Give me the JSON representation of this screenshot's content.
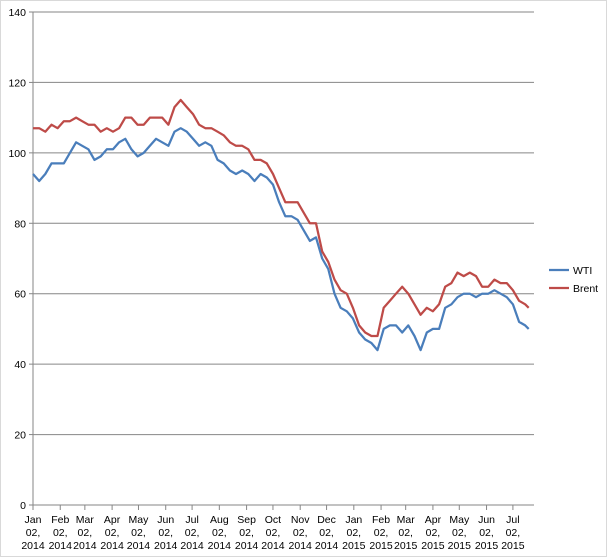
{
  "chart_data": {
    "type": "line",
    "x": [
      "2014-01-02",
      "2014-01-09",
      "2014-01-16",
      "2014-01-23",
      "2014-01-30",
      "2014-02-06",
      "2014-02-13",
      "2014-02-20",
      "2014-02-27",
      "2014-03-06",
      "2014-03-13",
      "2014-03-20",
      "2014-03-27",
      "2014-04-03",
      "2014-04-10",
      "2014-04-17",
      "2014-04-24",
      "2014-05-01",
      "2014-05-08",
      "2014-05-15",
      "2014-05-22",
      "2014-05-29",
      "2014-06-05",
      "2014-06-12",
      "2014-06-19",
      "2014-06-26",
      "2014-07-03",
      "2014-07-10",
      "2014-07-17",
      "2014-07-24",
      "2014-07-31",
      "2014-08-07",
      "2014-08-14",
      "2014-08-21",
      "2014-08-28",
      "2014-09-04",
      "2014-09-11",
      "2014-09-18",
      "2014-09-25",
      "2014-10-02",
      "2014-10-09",
      "2014-10-16",
      "2014-10-23",
      "2014-10-30",
      "2014-11-06",
      "2014-11-13",
      "2014-11-20",
      "2014-11-27",
      "2014-12-04",
      "2014-12-11",
      "2014-12-18",
      "2014-12-25",
      "2015-01-01",
      "2015-01-08",
      "2015-01-15",
      "2015-01-22",
      "2015-01-29",
      "2015-02-05",
      "2015-02-12",
      "2015-02-19",
      "2015-02-26",
      "2015-03-05",
      "2015-03-12",
      "2015-03-19",
      "2015-03-26",
      "2015-04-02",
      "2015-04-09",
      "2015-04-16",
      "2015-04-23",
      "2015-04-30",
      "2015-05-07",
      "2015-05-14",
      "2015-05-21",
      "2015-05-28",
      "2015-06-04",
      "2015-06-11",
      "2015-06-18",
      "2015-06-25",
      "2015-07-02",
      "2015-07-09",
      "2015-07-16",
      "2015-07-20"
    ],
    "series": [
      {
        "name": "WTI",
        "color": "#4a7ebb",
        "values": [
          94,
          92,
          94,
          97,
          97,
          97,
          100,
          103,
          102,
          101,
          98,
          99,
          101,
          101,
          103,
          104,
          101,
          99,
          100,
          102,
          104,
          103,
          102,
          106,
          107,
          106,
          104,
          102,
          103,
          102,
          98,
          97,
          95,
          94,
          95,
          94,
          92,
          94,
          93,
          91,
          86,
          82,
          82,
          81,
          78,
          75,
          76,
          70,
          67,
          60,
          56,
          55,
          53,
          49,
          47,
          46,
          44,
          50,
          51,
          51,
          49,
          51,
          48,
          44,
          49,
          50,
          50,
          56,
          57,
          59,
          60,
          60,
          59,
          60,
          60,
          61,
          60,
          59,
          57,
          52,
          51,
          50
        ]
      },
      {
        "name": "Brent",
        "color": "#be4b48",
        "values": [
          107,
          107,
          106,
          108,
          107,
          109,
          109,
          110,
          109,
          108,
          108,
          106,
          107,
          106,
          107,
          110,
          110,
          108,
          108,
          110,
          110,
          110,
          108,
          113,
          115,
          113,
          111,
          108,
          107,
          107,
          106,
          105,
          103,
          102,
          102,
          101,
          98,
          98,
          97,
          94,
          90,
          86,
          86,
          86,
          83,
          80,
          80,
          72,
          69,
          64,
          61,
          60,
          56,
          51,
          49,
          48,
          48,
          56,
          58,
          60,
          62,
          60,
          57,
          54,
          56,
          55,
          57,
          62,
          63,
          66,
          65,
          66,
          65,
          62,
          62,
          64,
          63,
          63,
          61,
          58,
          57,
          56
        ]
      }
    ],
    "xlim": [
      "2014-01-02",
      "2015-07-26"
    ],
    "xticks": [
      {
        "value": "2014-01-02",
        "label": "Jan 02, 2014"
      },
      {
        "value": "2014-02-02",
        "label": "Feb 02, 2014"
      },
      {
        "value": "2014-03-02",
        "label": "Mar 02, 2014"
      },
      {
        "value": "2014-04-02",
        "label": "Apr 02, 2014"
      },
      {
        "value": "2014-05-02",
        "label": "May 02, 2014"
      },
      {
        "value": "2014-06-02",
        "label": "Jun 02, 2014"
      },
      {
        "value": "2014-07-02",
        "label": "Jul 02, 2014"
      },
      {
        "value": "2014-08-02",
        "label": "Aug 02, 2014"
      },
      {
        "value": "2014-09-02",
        "label": "Sep 02, 2014"
      },
      {
        "value": "2014-10-02",
        "label": "Oct 02, 2014"
      },
      {
        "value": "2014-11-02",
        "label": "Nov 02, 2014"
      },
      {
        "value": "2014-12-02",
        "label": "Dec 02, 2014"
      },
      {
        "value": "2015-01-02",
        "label": "Jan 02, 2015"
      },
      {
        "value": "2015-02-02",
        "label": "Feb 02, 2015"
      },
      {
        "value": "2015-03-02",
        "label": "Mar 02, 2015"
      },
      {
        "value": "2015-04-02",
        "label": "Apr 02, 2015"
      },
      {
        "value": "2015-05-02",
        "label": "May 02, 2015"
      },
      {
        "value": "2015-06-02",
        "label": "Jun 02, 2015"
      },
      {
        "value": "2015-07-02",
        "label": "Jul 02, 2015"
      }
    ],
    "ylim": [
      0,
      140
    ],
    "yticks": [
      0,
      20,
      40,
      60,
      80,
      100,
      120,
      140
    ],
    "grid": true,
    "legend": "right"
  }
}
